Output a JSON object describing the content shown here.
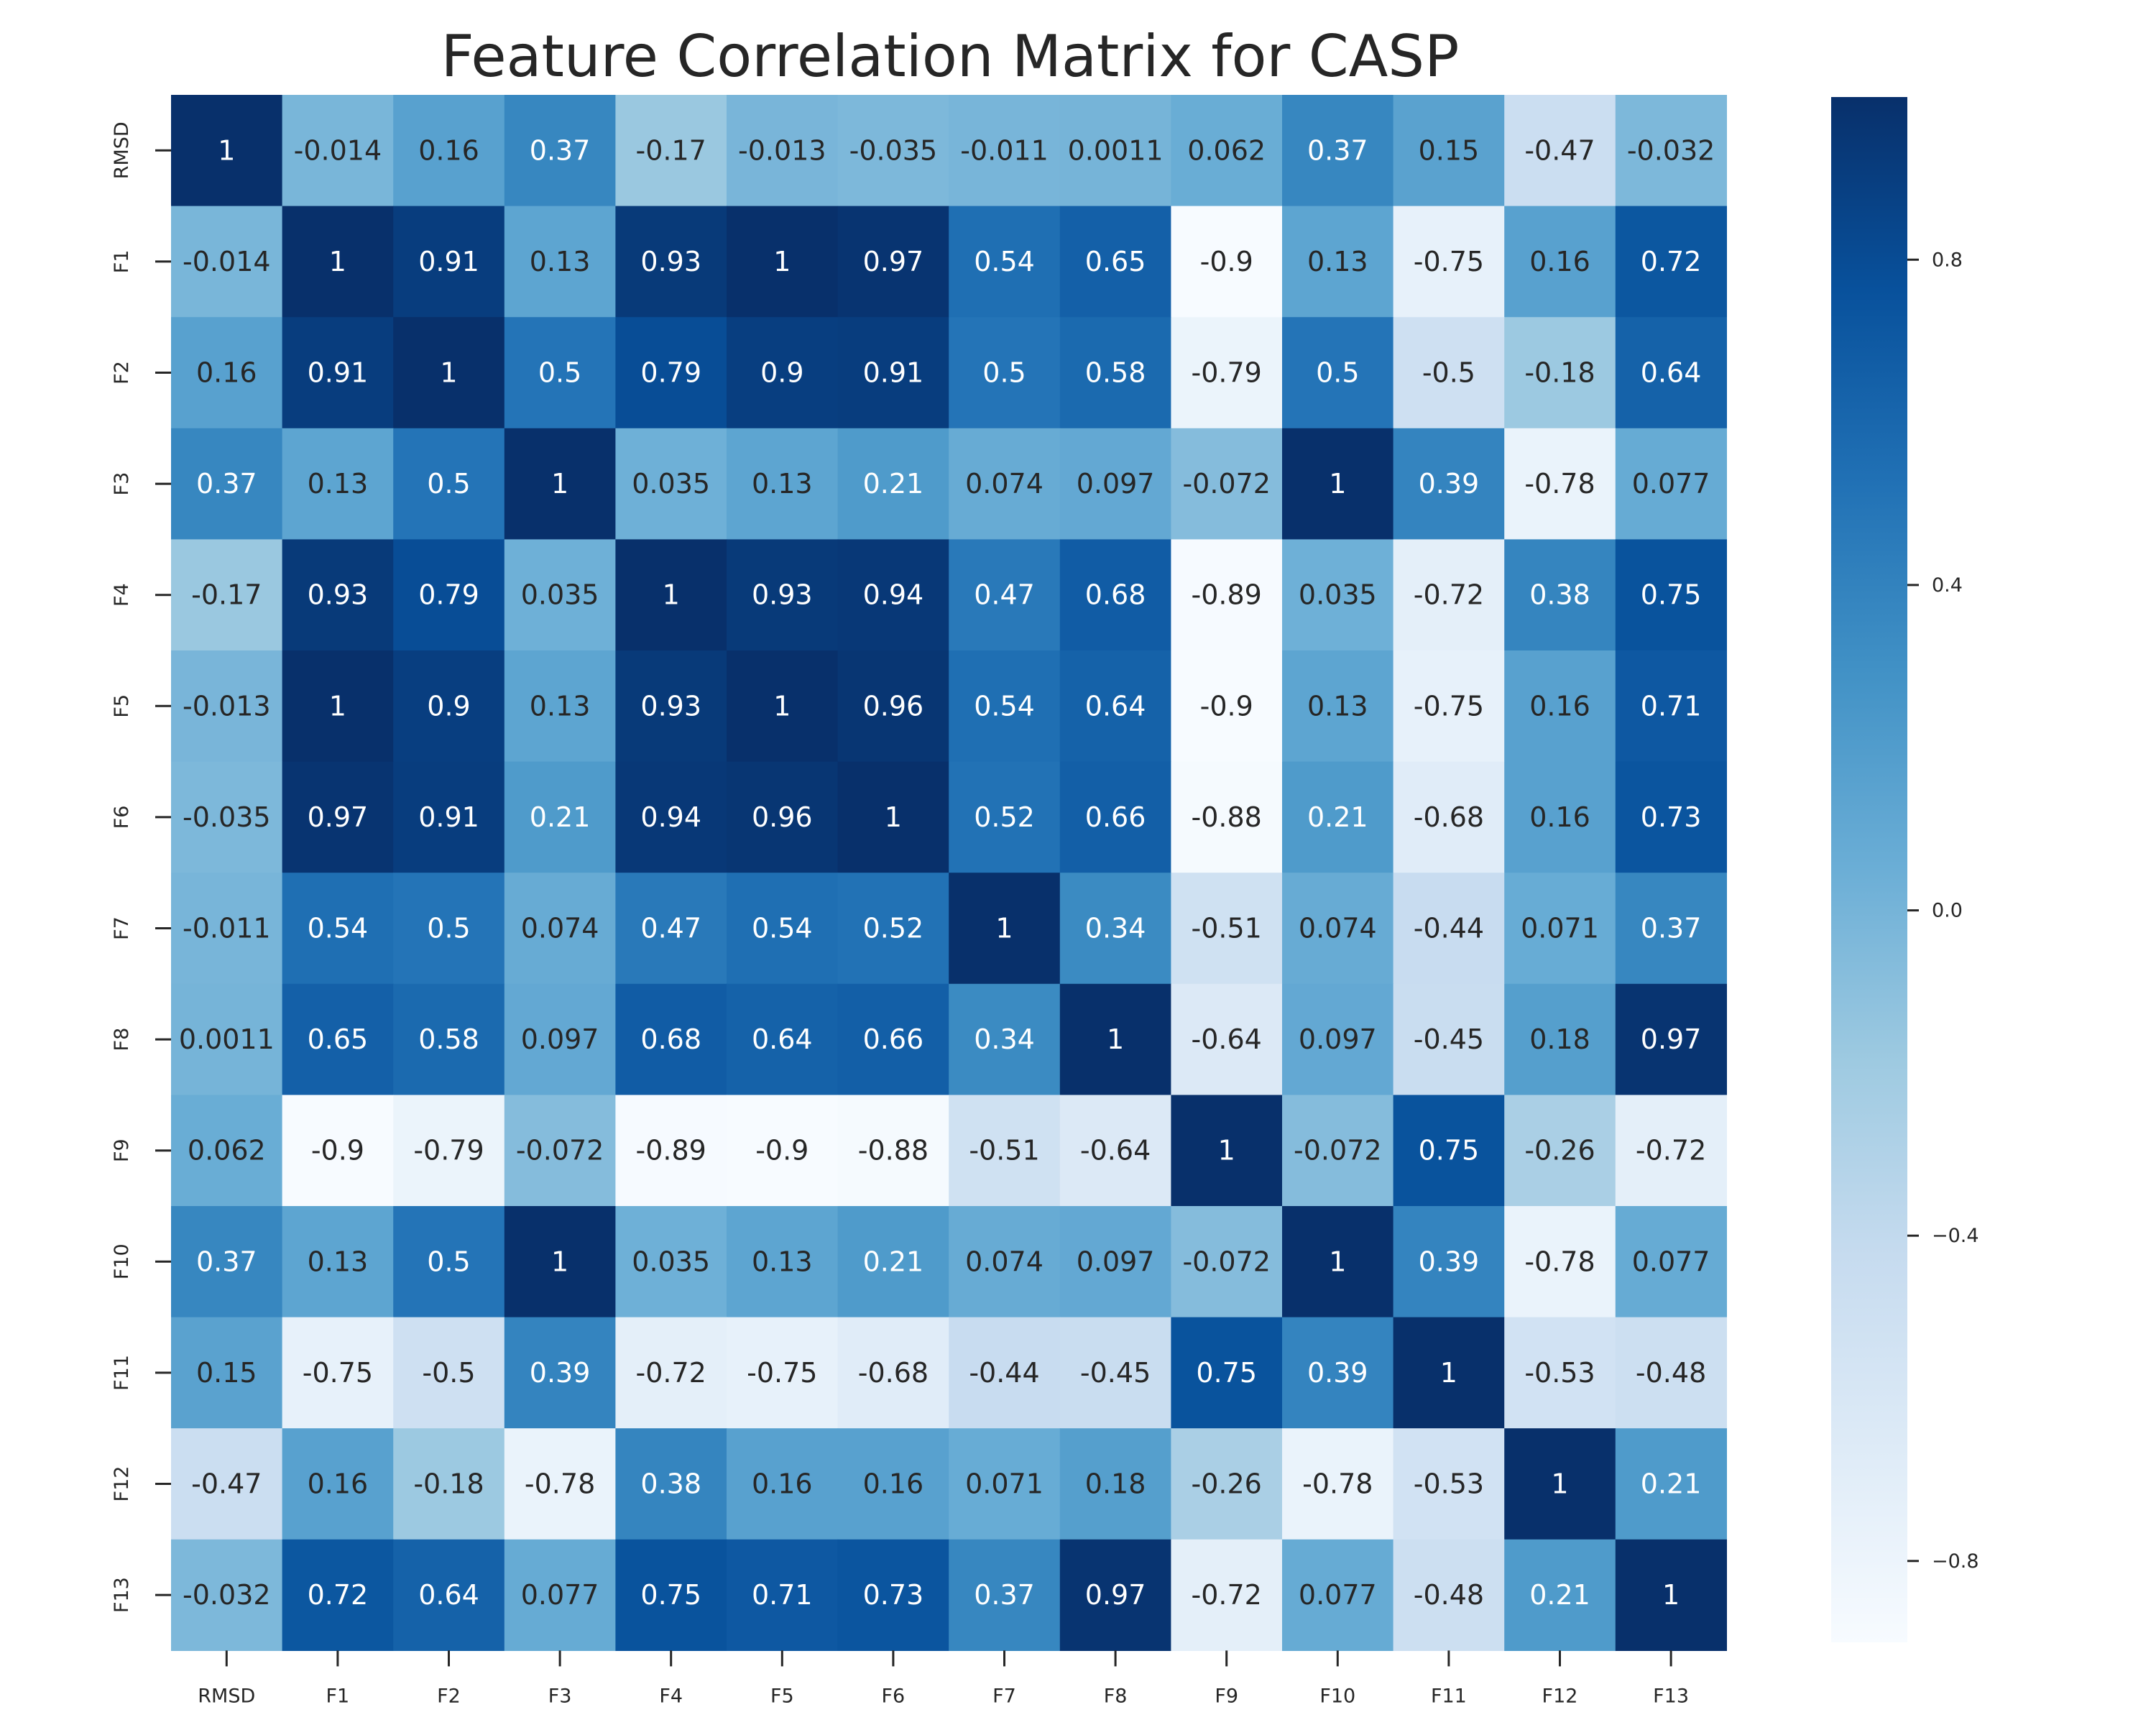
{
  "chart_data": {
    "type": "heatmap",
    "title": "Feature Correlation Matrix for CASP",
    "xlabel": "",
    "ylabel": "",
    "labels": [
      "RMSD",
      "F1",
      "F2",
      "F3",
      "F4",
      "F5",
      "F6",
      "F7",
      "F8",
      "F9",
      "F10",
      "F11",
      "F12",
      "F13"
    ],
    "matrix": [
      [
        "1",
        "-0.014",
        "0.16",
        "0.37",
        "-0.17",
        "-0.013",
        "-0.035",
        "-0.011",
        "0.0011",
        "0.062",
        "0.37",
        "0.15",
        "-0.47",
        "-0.032"
      ],
      [
        "-0.014",
        "1",
        "0.91",
        "0.13",
        "0.93",
        "1",
        "0.97",
        "0.54",
        "0.65",
        "-0.9",
        "0.13",
        "-0.75",
        "0.16",
        "0.72"
      ],
      [
        "0.16",
        "0.91",
        "1",
        "0.5",
        "0.79",
        "0.9",
        "0.91",
        "0.5",
        "0.58",
        "-0.79",
        "0.5",
        "-0.5",
        "-0.18",
        "0.64"
      ],
      [
        "0.37",
        "0.13",
        "0.5",
        "1",
        "0.035",
        "0.13",
        "0.21",
        "0.074",
        "0.097",
        "-0.072",
        "1",
        "0.39",
        "-0.78",
        "0.077"
      ],
      [
        "-0.17",
        "0.93",
        "0.79",
        "0.035",
        "1",
        "0.93",
        "0.94",
        "0.47",
        "0.68",
        "-0.89",
        "0.035",
        "-0.72",
        "0.38",
        "0.75"
      ],
      [
        "-0.013",
        "1",
        "0.9",
        "0.13",
        "0.93",
        "1",
        "0.96",
        "0.54",
        "0.64",
        "-0.9",
        "0.13",
        "-0.75",
        "0.16",
        "0.71"
      ],
      [
        "-0.035",
        "0.97",
        "0.91",
        "0.21",
        "0.94",
        "0.96",
        "1",
        "0.52",
        "0.66",
        "-0.88",
        "0.21",
        "-0.68",
        "0.16",
        "0.73"
      ],
      [
        "-0.011",
        "0.54",
        "0.5",
        "0.074",
        "0.47",
        "0.54",
        "0.52",
        "1",
        "0.34",
        "-0.51",
        "0.074",
        "-0.44",
        "0.071",
        "0.37"
      ],
      [
        "0.0011",
        "0.65",
        "0.58",
        "0.097",
        "0.68",
        "0.64",
        "0.66",
        "0.34",
        "1",
        "-0.64",
        "0.097",
        "-0.45",
        "0.18",
        "0.97"
      ],
      [
        "0.062",
        "-0.9",
        "-0.79",
        "-0.072",
        "-0.89",
        "-0.9",
        "-0.88",
        "-0.51",
        "-0.64",
        "1",
        "-0.072",
        "0.75",
        "-0.26",
        "-0.72"
      ],
      [
        "0.37",
        "0.13",
        "0.5",
        "1",
        "0.035",
        "0.13",
        "0.21",
        "0.074",
        "0.097",
        "-0.072",
        "1",
        "0.39",
        "-0.78",
        "0.077"
      ],
      [
        "0.15",
        "-0.75",
        "-0.5",
        "0.39",
        "-0.72",
        "-0.75",
        "-0.68",
        "-0.44",
        "-0.45",
        "0.75",
        "0.39",
        "1",
        "-0.53",
        "-0.48"
      ],
      [
        "-0.47",
        "0.16",
        "-0.18",
        "-0.78",
        "0.38",
        "0.16",
        "0.16",
        "0.071",
        "0.18",
        "-0.26",
        "-0.78",
        "-0.53",
        "1",
        "0.21"
      ],
      [
        "-0.032",
        "0.72",
        "0.64",
        "0.077",
        "0.75",
        "0.71",
        "0.73",
        "0.37",
        "0.97",
        "-0.72",
        "0.077",
        "-0.48",
        "0.21",
        "1"
      ]
    ],
    "colormap": "Blues",
    "color_range": [
      -0.9,
      1.0
    ],
    "colorbar_ticks": [
      "0.8",
      "0.4",
      "0.0",
      "−0.4",
      "−0.8"
    ],
    "grid": false,
    "legend": "colorbar-right"
  }
}
